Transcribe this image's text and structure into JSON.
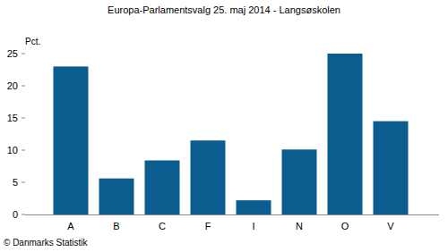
{
  "chart_data": {
    "type": "bar",
    "title": "Europa-Parlamentsvalg 25. maj 2014 - Langsøskolen",
    "ylabel": "Pct.",
    "categories": [
      "A",
      "B",
      "C",
      "F",
      "I",
      "N",
      "O",
      "V"
    ],
    "values": [
      23.0,
      5.6,
      8.4,
      11.5,
      2.2,
      10.1,
      25.0,
      14.5
    ],
    "color": "#0b5d8f",
    "ylim": [
      0,
      25
    ],
    "yticks": [
      0,
      5,
      10,
      15,
      20,
      25
    ],
    "grid": false,
    "annotations": [
      "© Danmarks Statistik"
    ]
  }
}
